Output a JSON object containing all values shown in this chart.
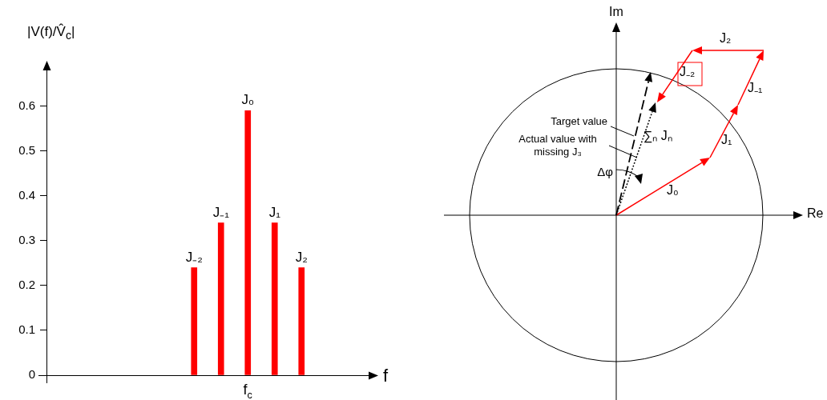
{
  "chart_data": [
    {
      "type": "bar",
      "ylabel": "|V(f)/V̂$_{c}$|",
      "xlabel": "f",
      "categories": [
        null,
        null,
        null,
        null,
        null,
        null,
        null,
        "f$_{c}$",
        null,
        null,
        null,
        null
      ],
      "values": [
        null,
        null,
        null,
        null,
        null,
        0.24,
        0.34,
        0.59,
        0.34,
        0.24,
        null,
        null
      ],
      "value_labels": [
        null,
        null,
        null,
        null,
        null,
        "J₋₂",
        "J₋₁",
        "J₀",
        "J₁",
        "J₂",
        null,
        null
      ],
      "color": "#ff0000",
      "ylim": [
        0,
        0.68
      ],
      "yticks": [
        0,
        0.1,
        0.2,
        0.3,
        0.4,
        0.5,
        0.6
      ],
      "grid": false,
      "legend": false
    },
    {
      "type": "other",
      "xlabel": "Re",
      "ylabel": "Im",
      "annotations": [
        "J₀",
        "J₁",
        "J₋₁",
        "J₂",
        "J₋₂",
        "Target value",
        "Actual value with missing J₃",
        "Δφ",
        "∑ₙ Jₙ"
      ]
    }
  ]
}
